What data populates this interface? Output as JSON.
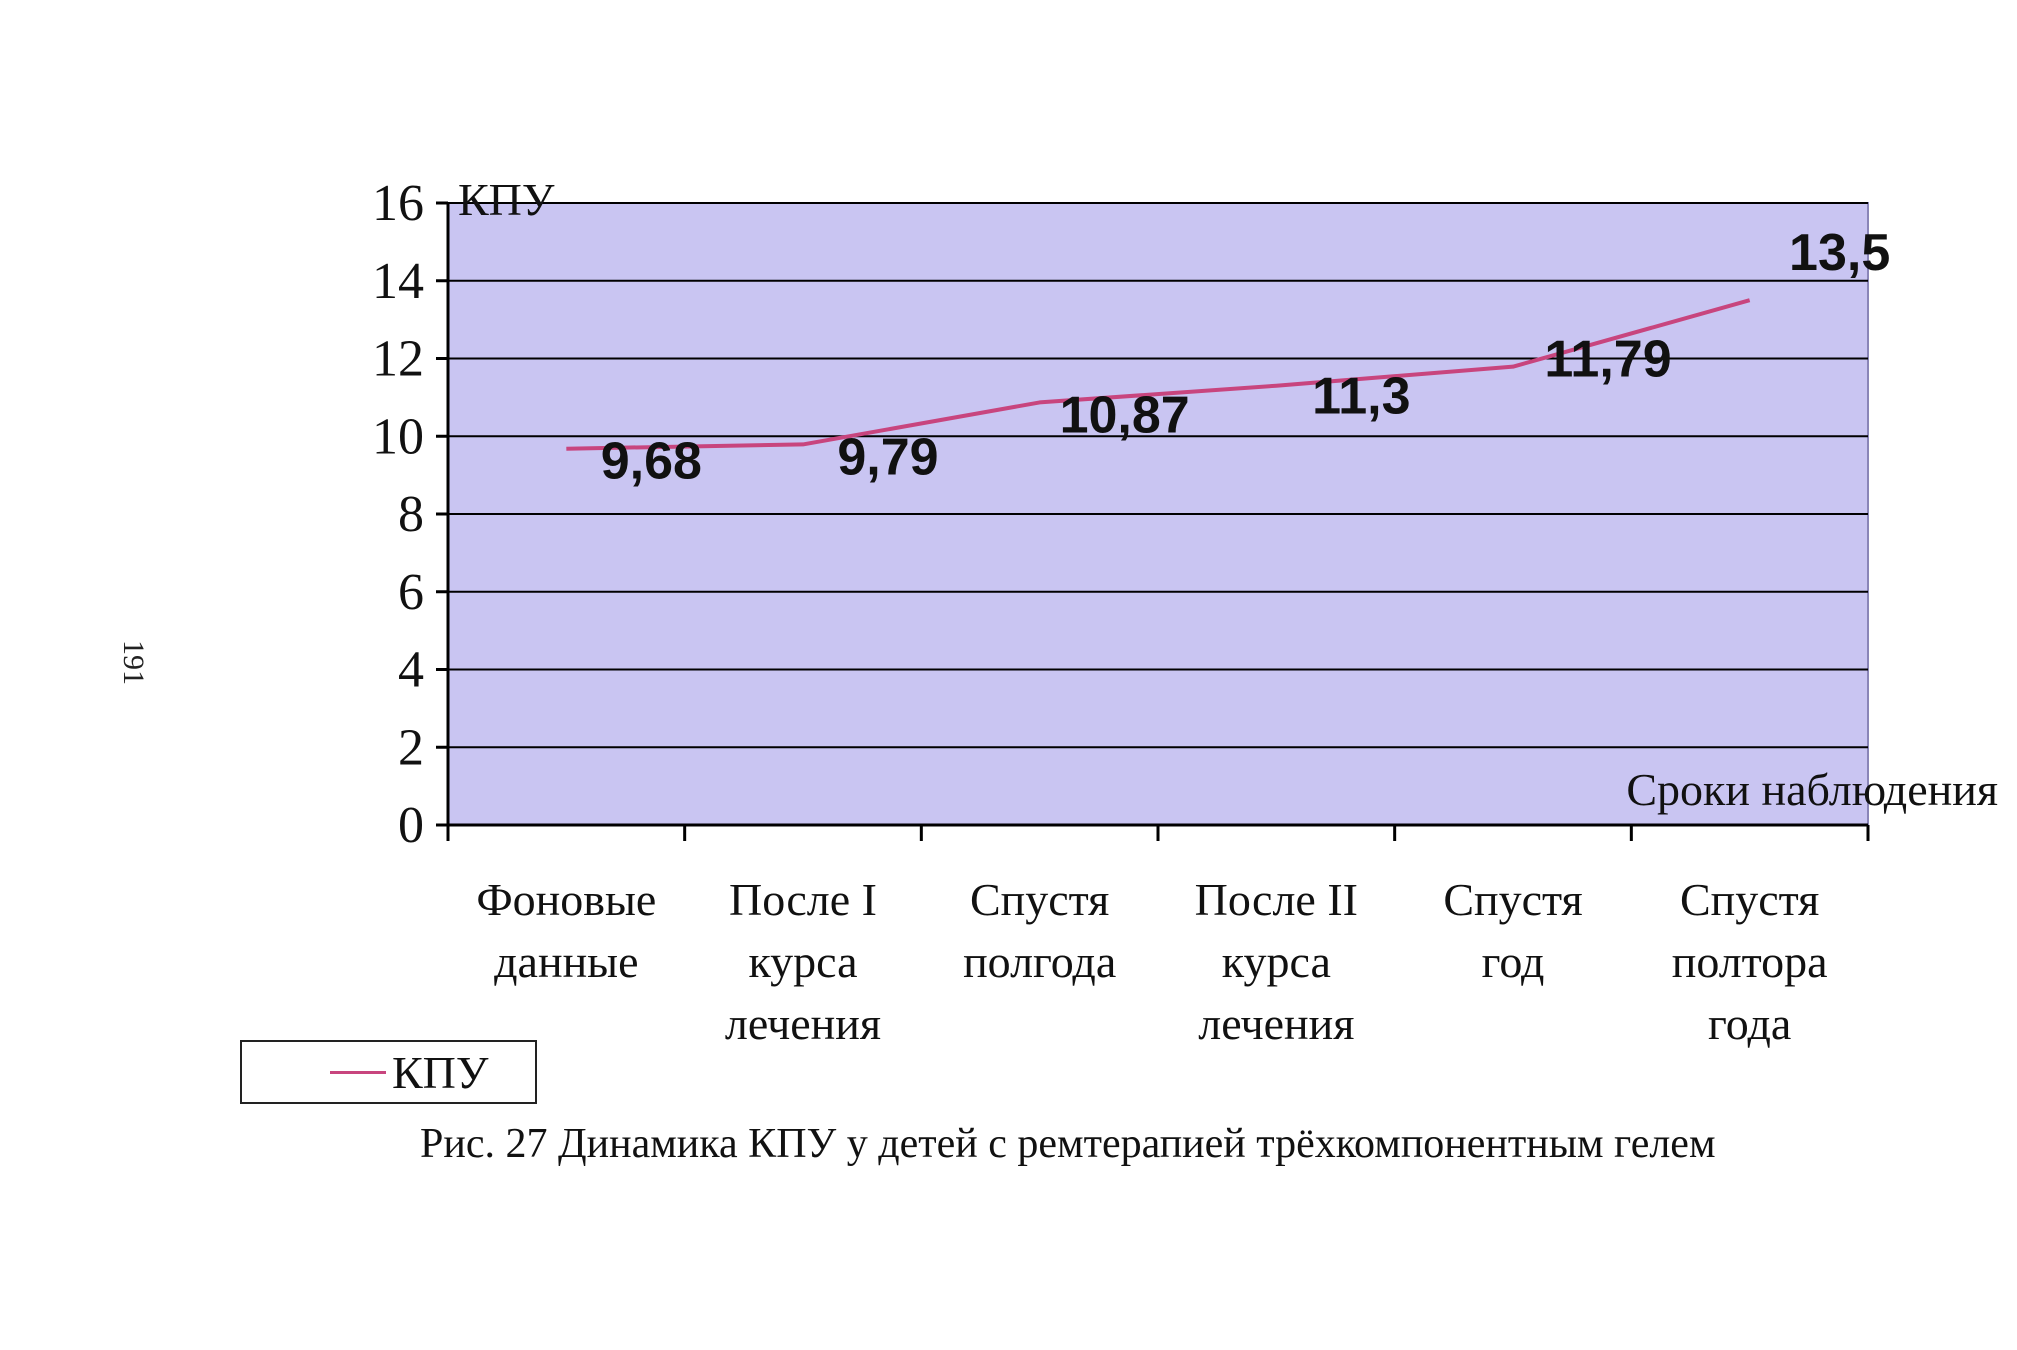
{
  "page_number": "191",
  "caption": "Рис. 27 Динамика КПУ у детей с ремтерапией трёхкомпонентным гелем",
  "legend": {
    "label": "КПУ"
  },
  "colors": {
    "plot_bg": "#c9c5f2",
    "line": "#c8457e",
    "grid": "#000000"
  },
  "chart_data": {
    "type": "line",
    "ylabel": "КПУ",
    "xlabel": "Сроки наблюдения",
    "ylim": [
      0,
      16
    ],
    "yticks": [
      0,
      2,
      4,
      6,
      8,
      10,
      12,
      14,
      16
    ],
    "grid": true,
    "legend_position": "bottom-left",
    "categories": [
      [
        "Фоновые",
        "данные"
      ],
      [
        "После I",
        "курса",
        "лечения"
      ],
      [
        "Спустя",
        "полгода"
      ],
      [
        "После II",
        "курса",
        "лечения"
      ],
      [
        "Спустя",
        "год"
      ],
      [
        "Спустя",
        "полтора",
        "года"
      ]
    ],
    "series": [
      {
        "name": "КПУ",
        "values": [
          9.68,
          9.79,
          10.87,
          11.3,
          11.79,
          13.5
        ],
        "labels": [
          "9,68",
          "9,79",
          "10,87",
          "11,3",
          "11,79",
          "13,5"
        ]
      }
    ]
  }
}
